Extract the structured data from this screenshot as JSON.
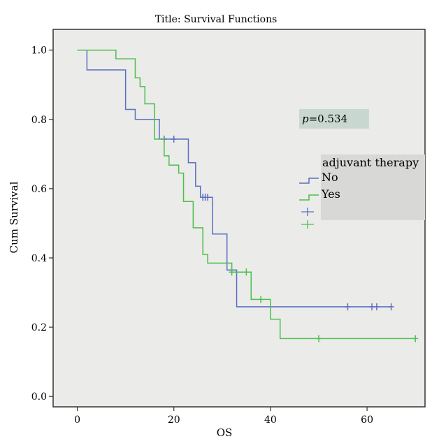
{
  "chart_data": {
    "type": "line",
    "title": "Title: Survival Functions",
    "xlabel": "OS",
    "ylabel": "Cum Survival",
    "xlim": [
      -5,
      72
    ],
    "ylim": [
      -0.03,
      1.06
    ],
    "x_ticks": [
      0,
      20,
      40,
      60
    ],
    "y_ticks": [
      0.0,
      0.2,
      0.4,
      0.6,
      0.8,
      1.0
    ],
    "x_tick_labels": [
      "0",
      "20",
      "40",
      "60"
    ],
    "y_tick_labels": [
      "0.0",
      "0.2",
      "0.4",
      "0.6",
      "0.8",
      "1.0"
    ],
    "annotation": {
      "p_label": "p",
      "p_value": "=0.534"
    },
    "legend": {
      "title": "adjuvant therapy",
      "entries": [
        "No",
        "Yes"
      ],
      "placement": "right"
    },
    "background_color": "#ebebe9",
    "series": [
      {
        "name": "No",
        "color": "#5b6fc4",
        "steps": [
          [
            0,
            1.0
          ],
          [
            2,
            0.943
          ],
          [
            10,
            0.829
          ],
          [
            12,
            0.8
          ],
          [
            17,
            0.743
          ],
          [
            23,
            0.675
          ],
          [
            24.5,
            0.607
          ],
          [
            25.5,
            0.575
          ],
          [
            28,
            0.469
          ],
          [
            31,
            0.365
          ],
          [
            33,
            0.259
          ],
          [
            65,
            0.259
          ]
        ],
        "censored": [
          [
            18,
            0.743
          ],
          [
            20,
            0.743
          ],
          [
            26,
            0.575
          ],
          [
            26.5,
            0.575
          ],
          [
            27,
            0.575
          ],
          [
            56,
            0.259
          ],
          [
            61,
            0.259
          ],
          [
            62,
            0.259
          ],
          [
            65,
            0.259
          ]
        ]
      },
      {
        "name": "Yes",
        "color": "#4cbf4c",
        "steps": [
          [
            0,
            1.0
          ],
          [
            8,
            0.975
          ],
          [
            12,
            0.92
          ],
          [
            13,
            0.895
          ],
          [
            14,
            0.845
          ],
          [
            16,
            0.743
          ],
          [
            18,
            0.695
          ],
          [
            19,
            0.668
          ],
          [
            21,
            0.645
          ],
          [
            22,
            0.563
          ],
          [
            24,
            0.487
          ],
          [
            26,
            0.41
          ],
          [
            27,
            0.385
          ],
          [
            32,
            0.359
          ],
          [
            36,
            0.28
          ],
          [
            40,
            0.223
          ],
          [
            42,
            0.167
          ],
          [
            70,
            0.167
          ]
        ],
        "censored": [
          [
            32,
            0.359
          ],
          [
            35,
            0.359
          ],
          [
            38,
            0.28
          ],
          [
            50,
            0.167
          ],
          [
            70,
            0.167
          ]
        ]
      }
    ]
  }
}
